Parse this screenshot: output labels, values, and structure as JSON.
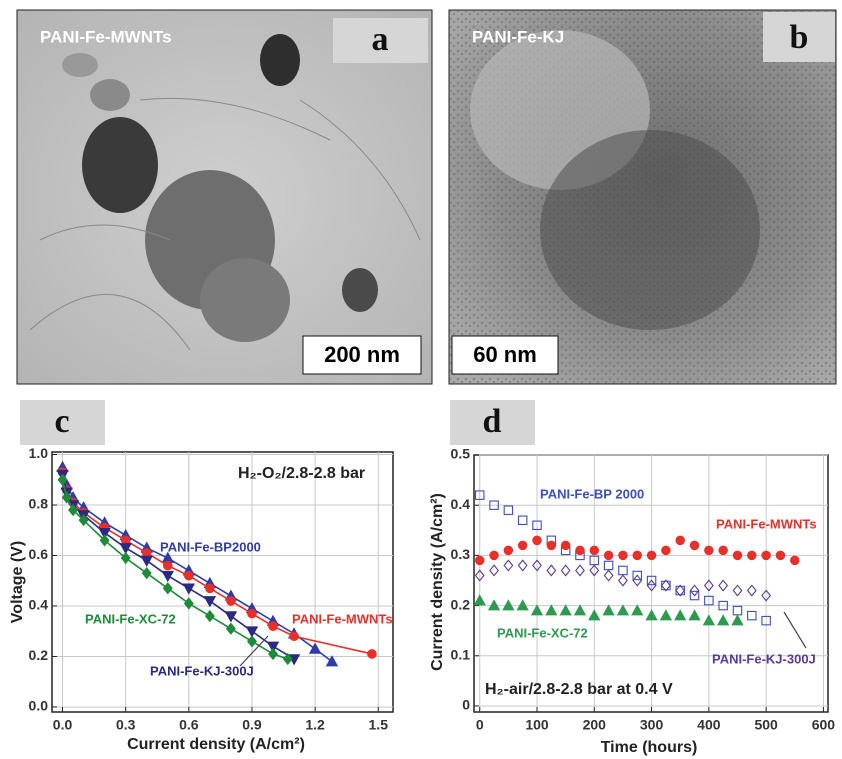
{
  "images": [
    {
      "letter": "a",
      "label": "PANI-Fe-MWNTs",
      "scale_bar": "200 nm"
    },
    {
      "letter": "b",
      "label": "PANI-Fe-KJ",
      "scale_bar": "60 nm"
    }
  ],
  "chart_data": [
    {
      "type": "line",
      "panel": "c",
      "x_label": "Current density (A/cm²)",
      "y_label": "Voltage (V)",
      "annotation": "H₂-O₂/2.8-2.8 bar",
      "xlim": [
        -0.05,
        1.57
      ],
      "ylim": [
        -0.02,
        1.01
      ],
      "xticks": [
        {
          "value": 0,
          "label": "0.0"
        },
        0.3,
        0.6,
        0.9,
        1.2,
        1.5
      ],
      "yticks": [
        {
          "value": 0,
          "label": "0.0"
        },
        0.2,
        0.4,
        0.6,
        0.8,
        {
          "value": 1,
          "label": "1.0"
        }
      ],
      "grid": true,
      "series": [
        {
          "name": "PANI-Fe-BP2000",
          "color": "#2e3ca8",
          "marker": "triangle",
          "x": [
            0,
            0.02,
            0.05,
            0.1,
            0.2,
            0.3,
            0.4,
            0.5,
            0.6,
            0.7,
            0.8,
            0.9,
            1.0,
            1.1,
            1.2,
            1.28
          ],
          "values": [
            0.95,
            0.88,
            0.83,
            0.79,
            0.73,
            0.68,
            0.63,
            0.59,
            0.54,
            0.49,
            0.44,
            0.39,
            0.34,
            0.29,
            0.23,
            0.18
          ]
        },
        {
          "name": "PANI-Fe-MWNTs",
          "color": "#e8302a",
          "marker": "circle",
          "x": [
            0,
            0.02,
            0.05,
            0.1,
            0.2,
            0.3,
            0.4,
            0.5,
            0.6,
            0.7,
            0.8,
            0.9,
            1.0,
            1.1,
            1.47
          ],
          "values": [
            0.93,
            0.86,
            0.81,
            0.77,
            0.71,
            0.66,
            0.61,
            0.56,
            0.52,
            0.47,
            0.42,
            0.37,
            0.32,
            0.28,
            0.21
          ]
        },
        {
          "name": "PANI-Fe-KJ-300J",
          "color": "#2a2a80",
          "marker": "triangle-down",
          "x": [
            0,
            0.02,
            0.05,
            0.1,
            0.2,
            0.3,
            0.4,
            0.5,
            0.6,
            0.7,
            0.8,
            0.9,
            1.0,
            1.1
          ],
          "values": [
            0.92,
            0.85,
            0.8,
            0.76,
            0.69,
            0.63,
            0.58,
            0.52,
            0.47,
            0.42,
            0.36,
            0.3,
            0.24,
            0.19
          ]
        },
        {
          "name": "PANI-Fe-XC-72",
          "color": "#1f8a3a",
          "marker": "diamond",
          "x": [
            0,
            0.02,
            0.05,
            0.1,
            0.2,
            0.3,
            0.4,
            0.5,
            0.6,
            0.7,
            0.8,
            0.9,
            1.0,
            1.07
          ],
          "values": [
            0.9,
            0.83,
            0.78,
            0.74,
            0.66,
            0.59,
            0.53,
            0.47,
            0.41,
            0.36,
            0.31,
            0.26,
            0.21,
            0.19
          ]
        }
      ]
    },
    {
      "type": "scatter",
      "panel": "d",
      "x_label": "Time (hours)",
      "y_label": "Current density (A/cm²)",
      "annotation": "H₂-air/2.8-2.8 bar at 0.4 V",
      "xlim": [
        -10,
        608
      ],
      "ylim": [
        -0.012,
        0.5
      ],
      "xticks": [
        0,
        100,
        200,
        300,
        400,
        500,
        600
      ],
      "yticks": [
        0,
        0.1,
        0.2,
        0.3,
        0.4,
        0.5
      ],
      "grid": true,
      "series": [
        {
          "name": "PANI-Fe-BP 2000",
          "color": "#3a4fc0",
          "marker": "square",
          "x": [
            0,
            25,
            50,
            75,
            100,
            125,
            150,
            175,
            200,
            225,
            250,
            275,
            300,
            325,
            350,
            375,
            400,
            425,
            450,
            475,
            500
          ],
          "values": [
            0.42,
            0.4,
            0.39,
            0.37,
            0.36,
            0.33,
            0.31,
            0.3,
            0.29,
            0.28,
            0.27,
            0.26,
            0.25,
            0.24,
            0.23,
            0.22,
            0.21,
            0.2,
            0.19,
            0.18,
            0.17
          ]
        },
        {
          "name": "PANI-Fe-MWNTs",
          "color": "#e8302a",
          "marker": "circle-filled",
          "x": [
            0,
            25,
            50,
            75,
            100,
            125,
            150,
            175,
            200,
            225,
            250,
            275,
            300,
            325,
            350,
            375,
            400,
            425,
            450,
            475,
            500,
            525,
            550
          ],
          "values": [
            0.29,
            0.3,
            0.31,
            0.32,
            0.33,
            0.32,
            0.32,
            0.31,
            0.31,
            0.3,
            0.3,
            0.3,
            0.3,
            0.31,
            0.33,
            0.32,
            0.31,
            0.31,
            0.3,
            0.3,
            0.3,
            0.3,
            0.29
          ]
        },
        {
          "name": "PANI-Fe-KJ-300J",
          "color": "#5a3a9a",
          "marker": "diamond",
          "x": [
            0,
            25,
            50,
            75,
            100,
            125,
            150,
            175,
            200,
            225,
            250,
            275,
            300,
            325,
            350,
            375,
            400,
            425,
            450,
            475,
            500
          ],
          "values": [
            0.26,
            0.27,
            0.28,
            0.28,
            0.28,
            0.27,
            0.27,
            0.27,
            0.27,
            0.26,
            0.25,
            0.25,
            0.24,
            0.24,
            0.23,
            0.23,
            0.24,
            0.24,
            0.23,
            0.23,
            0.22
          ]
        },
        {
          "name": "PANI-Fe-XC-72",
          "color": "#2e9a50",
          "marker": "triangle",
          "x": [
            0,
            25,
            50,
            75,
            100,
            125,
            150,
            175,
            200,
            225,
            250,
            275,
            300,
            325,
            350,
            375,
            400,
            425,
            450
          ],
          "values": [
            0.21,
            0.2,
            0.2,
            0.2,
            0.19,
            0.19,
            0.19,
            0.19,
            0.18,
            0.19,
            0.19,
            0.19,
            0.18,
            0.18,
            0.18,
            0.18,
            0.17,
            0.17,
            0.17
          ]
        }
      ]
    }
  ]
}
